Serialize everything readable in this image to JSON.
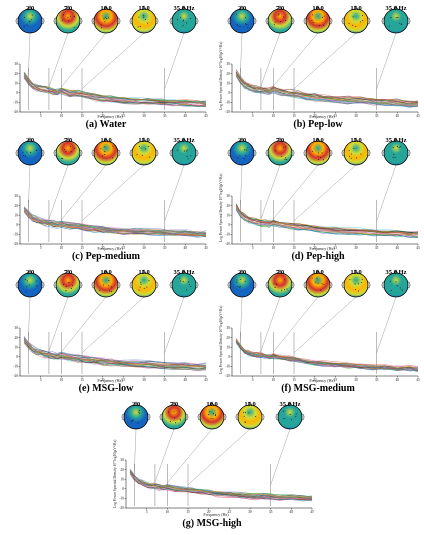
{
  "figure": {
    "panels": [
      {
        "caption": "(a) Water",
        "freq_labels": [
          "2.0",
          "7.0",
          "10.0",
          "15.0",
          "35.0 Hz"
        ],
        "xlabel": "Frequency (Hz)",
        "ylabel": ""
      },
      {
        "caption": "(b) Pep-low",
        "freq_labels": [
          "2.0",
          "7.0",
          "10.0",
          "15.0",
          "35.0 Hz"
        ],
        "xlabel": "Frequency (Hz)",
        "ylabel": "Log Power Spectral Density 10*log10(μV²/Hz)"
      },
      {
        "caption": "(c) Pep-medium",
        "freq_labels": [
          "2.0",
          "7.0",
          "10.0",
          "15.0",
          "35.0 Hz"
        ],
        "xlabel": "Frequency (Hz)",
        "ylabel": ""
      },
      {
        "caption": "(d) Pep-high",
        "freq_labels": [
          "2.0",
          "7.0",
          "10.0",
          "15.0",
          "35.0 Hz"
        ],
        "xlabel": "Frequency (Hz)",
        "ylabel": "Log Power Spectral Density 10*log10(μV²/Hz)"
      },
      {
        "caption": "(e) MSG-low",
        "freq_labels": [
          "2.0",
          "7.0",
          "10.0",
          "15.0",
          "35.0 Hz"
        ],
        "xlabel": "Frequency (Hz)",
        "ylabel": ""
      },
      {
        "caption": "(f) MSG-medium",
        "freq_labels": [
          "2.0",
          "7.0",
          "10.0",
          "15.0",
          "35.0 Hz"
        ],
        "xlabel": "Frequency (Hz)",
        "ylabel": "Log Power Spectral Density 10*log10(μV²/Hz)"
      },
      {
        "caption": "(g) MSG-high",
        "freq_labels": [
          "2.0",
          "7.0",
          "10.0",
          "15.0",
          "35.0 Hz"
        ],
        "xlabel": "Frequency (Hz)",
        "ylabel": "Log Power Spectral Density 10*log10(μV²/Hz)"
      }
    ]
  },
  "chart_data": [
    {
      "type": "line",
      "title": "(a) Water",
      "xlabel": "Frequency (Hz)",
      "ylabel": "",
      "xlim": [
        0,
        45
      ],
      "ylim": [
        -20,
        30
      ],
      "xticks": [
        5,
        10,
        15,
        20,
        25,
        30,
        35,
        40,
        45
      ],
      "yticks": [
        -20,
        -10,
        0,
        10,
        20,
        30
      ],
      "x": [
        1,
        2,
        3,
        4,
        5,
        6,
        7,
        8,
        9,
        10,
        12,
        14,
        16,
        18,
        20,
        22,
        25,
        28,
        31,
        34,
        37,
        40,
        43,
        45
      ],
      "mean": [
        18,
        12,
        7,
        5,
        4,
        3,
        2,
        1,
        0,
        2,
        -1,
        -1,
        -3,
        -5,
        -6,
        -7,
        -8,
        -9,
        -9,
        -10,
        -11,
        -11,
        -12,
        -12
      ],
      "spread": 6,
      "channels": 32,
      "topomap_frequencies": [
        2,
        7,
        10,
        15,
        35
      ]
    },
    {
      "type": "line",
      "title": "(b) Pep-low",
      "xlabel": "Frequency (Hz)",
      "ylabel": "Log Power Spectral Density 10*log10(μV²/Hz)",
      "xlim": [
        0,
        45
      ],
      "ylim": [
        -20,
        30
      ],
      "xticks": [
        5,
        10,
        15,
        20,
        25,
        30,
        35,
        40,
        45
      ],
      "yticks": [
        -20,
        -10,
        0,
        10,
        20,
        30
      ],
      "x": [
        1,
        2,
        3,
        4,
        5,
        6,
        7,
        8,
        9,
        10,
        12,
        14,
        16,
        18,
        20,
        22,
        25,
        28,
        31,
        34,
        37,
        40,
        43,
        45
      ],
      "mean": [
        20,
        13,
        8,
        6,
        4,
        3,
        3,
        2,
        1,
        3,
        0,
        -1,
        -2,
        -4,
        -5,
        -6,
        -7,
        -8,
        -8,
        -9,
        -10,
        -11,
        -12,
        -12
      ],
      "spread": 7,
      "channels": 32,
      "topomap_frequencies": [
        2,
        7,
        10,
        15,
        35
      ]
    },
    {
      "type": "line",
      "title": "(c) Pep-medium",
      "xlabel": "Frequency (Hz)",
      "ylabel": "",
      "xlim": [
        0,
        45
      ],
      "ylim": [
        -20,
        30
      ],
      "xticks": [
        5,
        10,
        15,
        20,
        25,
        30,
        35,
        40,
        45
      ],
      "yticks": [
        -20,
        -10,
        0,
        10,
        20,
        30
      ],
      "x": [
        1,
        2,
        3,
        4,
        5,
        6,
        7,
        8,
        9,
        10,
        12,
        14,
        16,
        18,
        20,
        22,
        25,
        28,
        31,
        34,
        37,
        40,
        43,
        45
      ],
      "mean": [
        16,
        11,
        7,
        5,
        3,
        2,
        2,
        1,
        0,
        1,
        -1,
        -2,
        -3,
        -4,
        -5,
        -6,
        -7,
        -7,
        -8,
        -8,
        -9,
        -9,
        -10,
        -10
      ],
      "spread": 6,
      "channels": 32,
      "topomap_frequencies": [
        2,
        7,
        10,
        15,
        35
      ]
    },
    {
      "type": "line",
      "title": "(d) Pep-high",
      "xlabel": "Frequency (Hz)",
      "ylabel": "Log Power Spectral Density 10*log10(μV²/Hz)",
      "xlim": [
        0,
        45
      ],
      "ylim": [
        -20,
        30
      ],
      "xticks": [
        5,
        10,
        15,
        20,
        25,
        30,
        35,
        40,
        45
      ],
      "yticks": [
        -20,
        -10,
        0,
        10,
        20,
        30
      ],
      "x": [
        1,
        2,
        3,
        4,
        5,
        6,
        7,
        8,
        9,
        10,
        12,
        14,
        16,
        18,
        20,
        22,
        25,
        28,
        31,
        34,
        37,
        40,
        43,
        45
      ],
      "mean": [
        19,
        12,
        8,
        5,
        4,
        3,
        2,
        2,
        1,
        2,
        0,
        -1,
        -2,
        -3,
        -4,
        -5,
        -6,
        -7,
        -7,
        -8,
        -9,
        -9,
        -10,
        -10
      ],
      "spread": 6,
      "channels": 32,
      "topomap_frequencies": [
        2,
        7,
        10,
        15,
        35
      ]
    },
    {
      "type": "line",
      "title": "(e) MSG-low",
      "xlabel": "Frequency (Hz)",
      "ylabel": "",
      "xlim": [
        0,
        45
      ],
      "ylim": [
        -20,
        30
      ],
      "xticks": [
        5,
        10,
        15,
        20,
        25,
        30,
        35,
        40,
        45
      ],
      "yticks": [
        -20,
        -10,
        0,
        10,
        20,
        30
      ],
      "x": [
        1,
        2,
        3,
        4,
        5,
        6,
        7,
        8,
        9,
        10,
        12,
        14,
        16,
        18,
        20,
        22,
        25,
        28,
        31,
        34,
        37,
        40,
        43,
        45
      ],
      "mean": [
        18,
        12,
        8,
        5,
        4,
        3,
        2,
        1,
        0,
        1,
        -1,
        -2,
        -3,
        -4,
        -5,
        -6,
        -7,
        -8,
        -8,
        -9,
        -10,
        -10,
        -11,
        -11
      ],
      "spread": 7,
      "channels": 32,
      "topomap_frequencies": [
        2,
        7,
        10,
        15,
        35
      ]
    },
    {
      "type": "line",
      "title": "(f) MSG-medium",
      "xlabel": "Frequency (Hz)",
      "ylabel": "Log Power Spectral Density 10*log10(μV²/Hz)",
      "xlim": [
        0,
        45
      ],
      "ylim": [
        -20,
        30
      ],
      "xticks": [
        5,
        10,
        15,
        20,
        25,
        30,
        35,
        40,
        45
      ],
      "yticks": [
        -20,
        -10,
        0,
        10,
        20,
        30
      ],
      "x": [
        1,
        2,
        3,
        4,
        5,
        6,
        7,
        8,
        9,
        10,
        12,
        14,
        16,
        18,
        20,
        22,
        25,
        28,
        31,
        34,
        37,
        40,
        43,
        45
      ],
      "mean": [
        17,
        11,
        6,
        4,
        3,
        2,
        2,
        1,
        0,
        1,
        -1,
        -2,
        -3,
        -5,
        -6,
        -7,
        -8,
        -9,
        -10,
        -11,
        -11,
        -12,
        -12,
        -13
      ],
      "spread": 4,
      "channels": 32,
      "topomap_frequencies": [
        2,
        7,
        10,
        15,
        35
      ]
    },
    {
      "type": "line",
      "title": "(g) MSG-high",
      "xlabel": "Frequency (Hz)",
      "ylabel": "Log Power Spectral Density 10*log10(μV²/Hz)",
      "xlim": [
        0,
        45
      ],
      "ylim": [
        -20,
        30
      ],
      "xticks": [
        5,
        10,
        15,
        20,
        25,
        30,
        35,
        40,
        45
      ],
      "yticks": [
        -20,
        -10,
        0,
        10,
        20,
        30
      ],
      "x": [
        1,
        2,
        3,
        4,
        5,
        6,
        7,
        8,
        9,
        10,
        12,
        14,
        16,
        18,
        20,
        22,
        25,
        28,
        31,
        34,
        37,
        40,
        43,
        45
      ],
      "mean": [
        18,
        12,
        8,
        6,
        4,
        3,
        3,
        2,
        1,
        2,
        0,
        -1,
        -2,
        -3,
        -4,
        -5,
        -6,
        -7,
        -8,
        -8,
        -9,
        -9,
        -10,
        -10
      ],
      "spread": 5,
      "channels": 32,
      "topomap_frequencies": [
        2,
        7,
        10,
        15,
        35
      ]
    }
  ],
  "palette": {
    "trace_colors": [
      "#1f3fb4",
      "#d62728",
      "#2ca02c",
      "#9467bd",
      "#e3b214",
      "#17becf",
      "#8c564b",
      "#e377c2",
      "#000000",
      "#7f7f7f",
      "#ff7f0e",
      "#0b6e0b"
    ],
    "topomap": {
      "low": "#1565c0",
      "mid_low": "#26a69a",
      "mid": "#cddc39",
      "mid_high": "#ffb300",
      "high": "#d32f2f"
    },
    "connector": "#888888"
  },
  "topomap_patterns": [
    [
      "mid",
      "mid_low",
      "low",
      "low",
      "low"
    ],
    [
      "mid_high",
      "high",
      "mid",
      "mid_low",
      "mid_low"
    ],
    [
      "mid_low",
      "mid_high",
      "high",
      "mid",
      "mid_low"
    ],
    [
      "mid_low",
      "mid",
      "mid_high",
      "mid",
      "low"
    ],
    [
      "mid",
      "mid_low",
      "mid_low",
      "mid_low",
      "low"
    ]
  ]
}
